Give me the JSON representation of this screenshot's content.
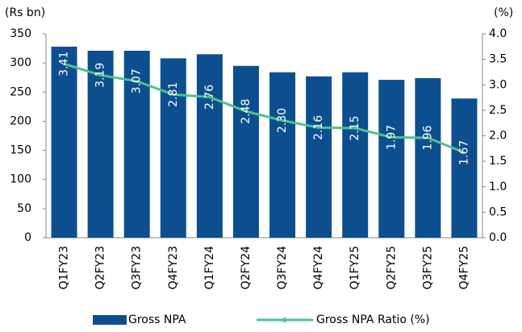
{
  "chart_data": {
    "type": "bar",
    "y_label": "(Rs bn)",
    "y2_label": "(%)",
    "categories": [
      "Q1FY23",
      "Q2FY23",
      "Q3FY23",
      "Q4FY23",
      "Q1FY24",
      "Q2FY24",
      "Q3FY24",
      "Q4FY24",
      "Q1FY25",
      "Q2FY25",
      "Q3FY25",
      "Q4FY25"
    ],
    "series": [
      {
        "name": "Gross NPA",
        "type": "bar",
        "color": "#0d4f8e",
        "values": [
          328,
          321,
          321,
          308,
          315,
          295,
          284,
          277,
          284,
          271,
          274,
          239
        ]
      },
      {
        "name": "Gross NPA Ratio (%)",
        "type": "line",
        "axis": "y2",
        "color": "#4fc28d",
        "values": [
          3.41,
          3.19,
          3.07,
          2.81,
          2.76,
          2.48,
          2.3,
          2.16,
          2.15,
          1.97,
          1.96,
          1.67
        ],
        "value_labels": [
          "3.41",
          "3.19",
          "3.07",
          "2.81",
          "2.76",
          "2.48",
          "2.30",
          "2.16",
          "2.15",
          "1.97",
          "1.96",
          "1.67"
        ]
      }
    ],
    "ylim": [
      0,
      350
    ],
    "yticks": [
      0,
      50,
      100,
      150,
      200,
      250,
      300,
      350
    ],
    "y2lim": [
      0,
      4
    ],
    "y2ticks": [
      {
        "value": 0,
        "label": "0.0"
      },
      0.5,
      {
        "value": 1,
        "label": "1.0"
      },
      1.5,
      {
        "value": 2,
        "label": "2.0"
      },
      2.5,
      {
        "value": 3,
        "label": "3.0"
      },
      3.5,
      {
        "value": 4,
        "label": "4.0"
      }
    ],
    "legend": "bottom"
  }
}
